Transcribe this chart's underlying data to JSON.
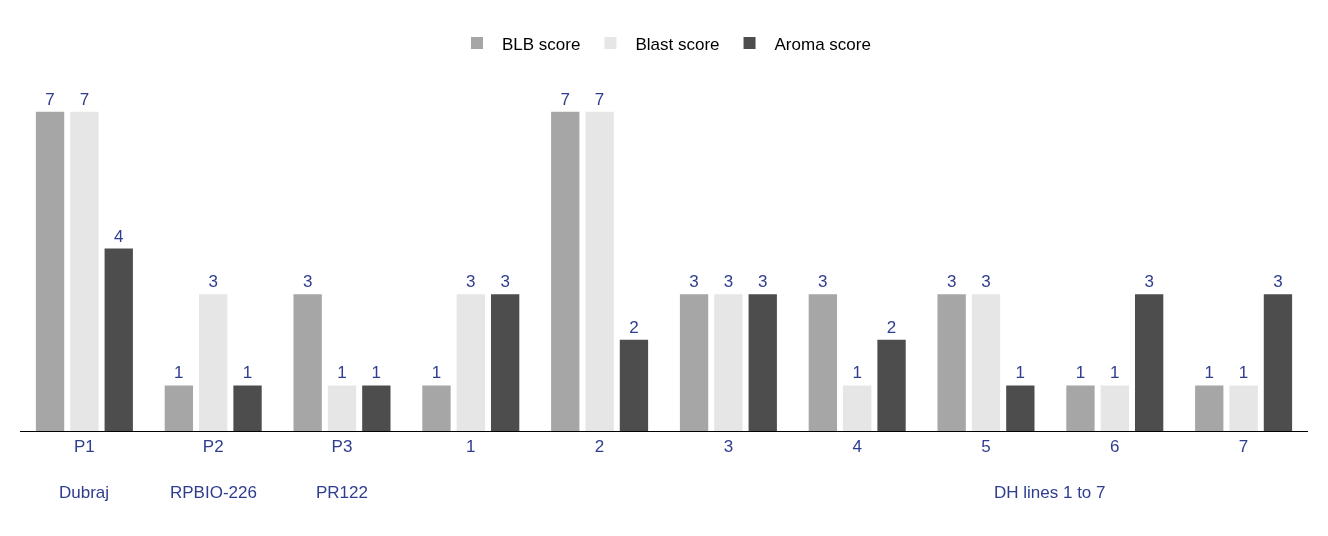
{
  "chart_data": {
    "type": "bar",
    "categories": [
      "P1",
      "P2",
      "P3",
      "1",
      "2",
      "3",
      "4",
      "5",
      "6",
      "7"
    ],
    "series": [
      {
        "name": "BLB score",
        "color": "#a6a6a6",
        "values": [
          7,
          1,
          3,
          1,
          7,
          3,
          3,
          3,
          1,
          1
        ]
      },
      {
        "name": "Blast score",
        "color": "#e6e6e6",
        "values": [
          7,
          3,
          1,
          3,
          7,
          3,
          1,
          3,
          1,
          1
        ]
      },
      {
        "name": "Aroma score",
        "color": "#4d4d4d",
        "values": [
          4,
          1,
          1,
          3,
          2,
          3,
          2,
          1,
          3,
          3
        ]
      }
    ],
    "data_labels": true,
    "legend": "top",
    "annotations": [
      "Dubraj",
      "RPBIO-226",
      "PR122",
      "DH lines 1 to 7"
    ]
  }
}
